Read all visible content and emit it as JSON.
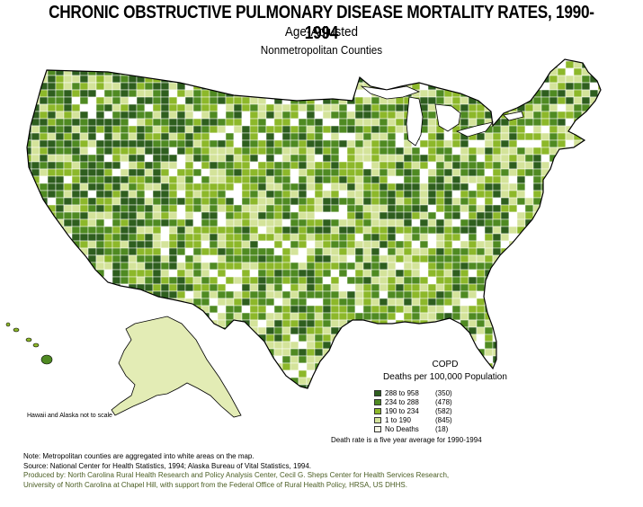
{
  "title": "CHRONIC OBSTRUCTIVE PULMONARY DISEASE MORTALITY RATES, 1990-1994",
  "subtitle": "Age-Adjusted",
  "subsubtitle": "Nonmetropolitan Counties",
  "scale_note": "Hawaii and Alaska not to scale",
  "legend": {
    "title": "COPD",
    "subtitle": "Deaths per 100,000 Population",
    "items": [
      {
        "range": "288 to 958",
        "count": "(350)",
        "color": "#2e5e1e"
      },
      {
        "range": "234 to 288",
        "count": "(478)",
        "color": "#4f8a22"
      },
      {
        "range": "190 to 234",
        "count": "(582)",
        "color": "#8db82a"
      },
      {
        "range": "1 to 190",
        "count": "(845)",
        "color": "#d4e39a"
      },
      {
        "range": "No Deaths",
        "count": "(18)",
        "color": "#f7f7e6"
      }
    ]
  },
  "death_note": "Death rate is a five year average for 1990-1994",
  "notes": {
    "line1": "Note: Metropolitan counties are aggregated into white areas on the map.",
    "line2": "Source: National Center for Health Statistics, 1994; Alaska Bureau of Vital Statistics, 1994.",
    "line3": "Produced by: North Carolina Rural Health Research and Policy Analysis Center, Cecil G. Sheps Center for Health Services Research,",
    "line4": "University of North Carolina at Chapel Hill, with support from the Federal Office of Rural Health Policy, HRSA, US DHHS."
  },
  "map_colors": {
    "outline": "#000000",
    "metro": "#ffffff",
    "alaska": "#e3ecb5"
  }
}
